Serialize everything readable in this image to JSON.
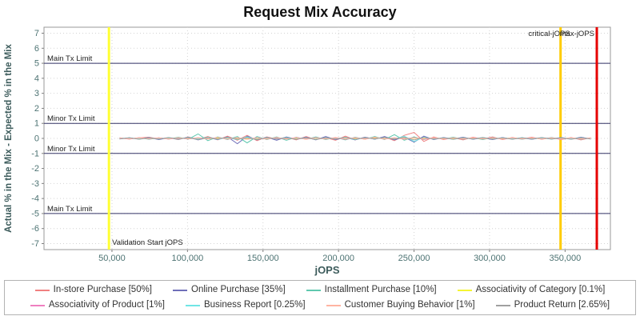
{
  "title": "Request Mix Accuracy",
  "legend": {
    "per_row": 4
  },
  "chart_data": {
    "type": "line",
    "title": "Request Mix Accuracy",
    "xlabel": "jOPS",
    "ylabel": "Actual % in the Mix - Expected % in the Mix",
    "xlim": [
      5000,
      380000
    ],
    "ylim": [
      -7.4,
      7.4
    ],
    "x_ticks": [
      50000,
      100000,
      150000,
      200000,
      250000,
      300000,
      350000
    ],
    "y_ticks": [
      -7,
      -6,
      -5,
      -4,
      -3,
      -2,
      -1,
      0,
      1,
      2,
      3,
      4,
      5,
      6,
      7
    ],
    "grid": true,
    "legend_position": "bottom",
    "colors": {
      "grid": "#d4d4d4",
      "plot_border": "#9a9a9a",
      "tick_text": "#4d7373",
      "axis_label": "#3d5c5c",
      "annotation_text": "#222222",
      "limit_line": "#333366"
    },
    "limit_lines": [
      {
        "label": "Main Tx Limit",
        "y": 5
      },
      {
        "label": "Minor Tx Limit",
        "y": 1
      },
      {
        "label": "Minor Tx Limit",
        "y": -1
      },
      {
        "label": "Main Tx Limit",
        "y": -5
      }
    ],
    "marker_lines": [
      {
        "label": "Validation Start jOPS",
        "x": 48000,
        "color": "#ffff33",
        "width": 3,
        "label_pos": "bottom",
        "label_anchor": "start",
        "label_dx": 4
      },
      {
        "label": "critical-jOPS",
        "x": 347000,
        "color": "#ffcc00",
        "width": 3,
        "label_pos": "top",
        "label_anchor": "end",
        "label_dx": 12
      },
      {
        "label": "max-jOPS",
        "x": 371000,
        "color": "#e60000",
        "width": 3,
        "label_pos": "top",
        "label_anchor": "end",
        "label_dx": -3
      }
    ],
    "x": [
      55000,
      61500,
      68000,
      74500,
      81000,
      87500,
      94000,
      100500,
      107000,
      113500,
      120000,
      126500,
      133000,
      139500,
      146000,
      152500,
      159000,
      165500,
      172000,
      178500,
      185000,
      191500,
      198000,
      204500,
      211000,
      217500,
      224000,
      230500,
      237000,
      243500,
      250000,
      256500,
      263000,
      269500,
      276000,
      282500,
      289000,
      295500,
      302000,
      308500,
      315000,
      321500,
      328000,
      334500,
      341000,
      347500,
      354000,
      360500,
      367000
    ],
    "series": [
      {
        "name": "In-store Purchase [50%]",
        "color": "#f08080",
        "values": [
          0.02,
          -0.05,
          0.03,
          0.08,
          -0.04,
          0.05,
          -0.08,
          0.1,
          -0.06,
          0.12,
          -0.1,
          0.15,
          -0.12,
          0.2,
          -0.15,
          0.1,
          -0.05,
          0.08,
          -0.1,
          0.12,
          -0.08,
          0.05,
          -0.12,
          0.15,
          -0.1,
          0.08,
          -0.05,
          0.1,
          -0.15,
          0.2,
          0.4,
          -0.2,
          0.1,
          -0.08,
          0.05,
          -0.1,
          0.08,
          -0.05,
          0.1,
          -0.08,
          0.06,
          -0.04,
          0.08,
          -0.06,
          0.05,
          -0.08,
          0.06,
          -0.1,
          0.05
        ]
      },
      {
        "name": "Online Purchase [35%]",
        "color": "#6f6fb9",
        "values": [
          -0.03,
          0.04,
          -0.05,
          0.06,
          -0.08,
          0.05,
          -0.06,
          0.08,
          -0.1,
          0.06,
          -0.08,
          0.1,
          -0.35,
          0.15,
          -0.1,
          0.08,
          -0.12,
          0.1,
          -0.06,
          0.08,
          -0.1,
          0.12,
          -0.08,
          0.06,
          -0.1,
          0.08,
          -0.06,
          0.12,
          -0.1,
          0.08,
          -0.25,
          0.15,
          -0.08,
          0.06,
          -0.05,
          0.08,
          -0.06,
          0.05,
          -0.08,
          0.06,
          -0.05,
          0.04,
          -0.06,
          0.05,
          -0.04,
          0.06,
          -0.05,
          0.08,
          -0.04
        ]
      },
      {
        "name": "Installment Purchase [10%]",
        "color": "#5fc8af",
        "values": [
          0.04,
          -0.03,
          0.05,
          -0.06,
          0.04,
          -0.05,
          0.08,
          -0.06,
          0.3,
          -0.15,
          0.1,
          -0.08,
          0.12,
          -0.3,
          0.12,
          -0.08,
          0.1,
          -0.12,
          0.08,
          -0.06,
          0.1,
          -0.08,
          0.06,
          -0.1,
          0.08,
          -0.06,
          0.12,
          -0.08,
          0.25,
          -0.12,
          0.1,
          -0.08,
          0.06,
          -0.05,
          0.08,
          -0.06,
          0.05,
          -0.08,
          0.06,
          -0.05,
          0.04,
          -0.06,
          0.05,
          -0.04,
          0.06,
          -0.05,
          0.04,
          -0.06,
          0.03
        ]
      },
      {
        "name": "Associativity of Category [0.1%]",
        "color": "#f5f533",
        "values": [
          0.01,
          -0.01,
          0.02,
          -0.02,
          0.01,
          -0.01,
          0.02,
          -0.01,
          0.01,
          -0.02,
          0.02,
          -0.01,
          0.01,
          -0.02,
          0.01,
          -0.01,
          0.02,
          -0.02,
          0.01,
          -0.01,
          0.02,
          -0.01,
          0.01,
          -0.02,
          0.01,
          -0.01,
          0.02,
          -0.02,
          0.01,
          -0.01,
          0.02,
          -0.01,
          0.01,
          -0.02,
          0.01,
          -0.01,
          0.02,
          -0.02,
          0.01,
          -0.01,
          0.02,
          -0.01,
          0.01,
          -0.02,
          0.01,
          -0.01,
          0.02,
          -0.01,
          0.01
        ]
      },
      {
        "name": "Associativity of Product [1%]",
        "color": "#ef7fc0",
        "values": [
          0.03,
          -0.04,
          0.05,
          -0.03,
          0.04,
          -0.05,
          0.03,
          -0.04,
          0.05,
          -0.03,
          0.06,
          -0.05,
          0.04,
          -0.06,
          0.05,
          -0.04,
          0.03,
          -0.05,
          0.06,
          -0.04,
          0.05,
          -0.03,
          0.04,
          -0.06,
          0.05,
          -0.04,
          0.06,
          -0.05,
          0.04,
          -0.03,
          0.05,
          -0.06,
          0.04,
          -0.05,
          0.03,
          -0.04,
          0.05,
          -0.03,
          0.04,
          -0.05,
          0.03,
          -0.04,
          0.05,
          -0.03,
          0.04,
          -0.05,
          0.03,
          -0.04,
          0.03
        ]
      },
      {
        "name": "Business Report [0.25%]",
        "color": "#70e5e5",
        "values": [
          -0.02,
          0.03,
          -0.04,
          0.03,
          -0.03,
          0.04,
          -0.05,
          0.06,
          -0.04,
          0.08,
          -0.06,
          0.05,
          -0.08,
          0.1,
          -0.06,
          0.05,
          -0.04,
          0.06,
          -0.05,
          0.04,
          -0.06,
          0.05,
          -0.04,
          0.06,
          -0.08,
          0.05,
          -0.04,
          0.06,
          -0.05,
          0.15,
          -0.2,
          0.08,
          -0.05,
          0.04,
          -0.06,
          0.05,
          -0.04,
          0.06,
          -0.05,
          0.04,
          -0.03,
          0.05,
          -0.04,
          0.03,
          -0.05,
          0.04,
          -0.03,
          0.05,
          -0.03
        ]
      },
      {
        "name": "Customer Buying Behavior [1%]",
        "color": "#ffb4a2",
        "values": [
          0.02,
          -0.03,
          0.04,
          -0.02,
          0.03,
          -0.04,
          0.05,
          -0.03,
          0.04,
          -0.05,
          0.06,
          -0.04,
          0.05,
          -0.06,
          0.04,
          -0.05,
          0.06,
          -0.04,
          0.05,
          -0.06,
          0.04,
          -0.05,
          0.06,
          -0.04,
          0.05,
          -0.06,
          0.08,
          -0.05,
          0.04,
          -0.06,
          0.05,
          -0.04,
          0.06,
          -0.05,
          0.04,
          -0.03,
          0.05,
          -0.04,
          0.03,
          -0.05,
          0.04,
          -0.03,
          0.05,
          -0.04,
          0.03,
          -0.05,
          0.04,
          -0.03,
          0.03
        ]
      },
      {
        "name": "Product Return [2.65%]",
        "color": "#a0a0a0",
        "values": [
          -0.04,
          0.05,
          -0.06,
          0.04,
          -0.05,
          0.06,
          -0.04,
          0.05,
          -0.08,
          0.06,
          -0.05,
          0.08,
          -0.06,
          0.05,
          -0.08,
          0.06,
          -0.05,
          0.04,
          -0.06,
          0.05,
          -0.08,
          0.06,
          -0.05,
          0.08,
          -0.06,
          0.05,
          -0.04,
          0.06,
          -0.05,
          0.08,
          -0.1,
          0.06,
          -0.05,
          0.04,
          -0.06,
          0.05,
          -0.04,
          0.06,
          -0.05,
          0.04,
          -0.06,
          0.05,
          -0.04,
          0.06,
          -0.05,
          0.04,
          -0.06,
          0.05,
          -0.04
        ]
      }
    ]
  }
}
